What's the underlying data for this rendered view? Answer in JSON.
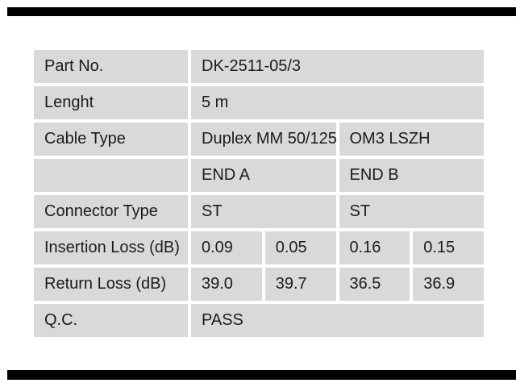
{
  "colors": {
    "page_bg": "#ffffff",
    "cell_bg": "#d9d9d9",
    "text": "#1c1c1c",
    "bar": "#000000"
  },
  "table": {
    "rows": [
      {
        "label": "Part No.",
        "cells": [
          "DK-2511-05/3"
        ]
      },
      {
        "label": "Lenght",
        "cells": [
          "5 m"
        ]
      },
      {
        "label": "Cable Type",
        "cells": [
          "Duplex MM 50/125",
          "OM3 LSZH"
        ]
      },
      {
        "label": "",
        "cells": [
          "END A",
          "END B"
        ]
      },
      {
        "label": "Connector Type",
        "cells": [
          "ST",
          "ST"
        ]
      },
      {
        "label": "Insertion Loss (dB)",
        "cells": [
          "0.09",
          "0.05",
          "0.16",
          "0.15"
        ]
      },
      {
        "label": "Return Loss (dB)",
        "cells": [
          "39.0",
          "39.7",
          "36.5",
          "36.9"
        ]
      },
      {
        "label": "Q.C.",
        "cells": [
          "PASS"
        ]
      }
    ]
  }
}
